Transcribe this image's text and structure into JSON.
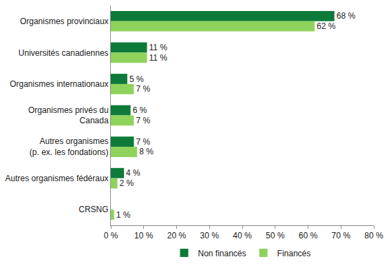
{
  "chart_data": {
    "type": "bar",
    "orientation": "horizontal",
    "categories": [
      "Organismes provinciaux",
      "Universités canadiennes",
      "Organismes internationaux",
      "Organismes privés du\nCanada",
      "Autres organismes\n(p. ex. les fondations)",
      "Autres organismes fédéraux",
      "CRSNG"
    ],
    "series": [
      {
        "name": "Non financés",
        "color": "#0e7a3a",
        "values": [
          68,
          11,
          5,
          6,
          7,
          4,
          null
        ],
        "value_labels": [
          "68 %",
          "11 %",
          "5 %",
          "6 %",
          "7 %",
          "4 %",
          null
        ]
      },
      {
        "name": "Financés",
        "color": "#8fd35c",
        "values": [
          62,
          11,
          7,
          7,
          8,
          2,
          1
        ],
        "value_labels": [
          "62 %",
          "11 %",
          "7 %",
          "7 %",
          "8 %",
          "2 %",
          "1 %"
        ]
      }
    ],
    "xlim": [
      0,
      80
    ],
    "xticks": [
      {
        "value": 0,
        "label": "0 %"
      },
      {
        "value": 10,
        "label": "10 %"
      },
      {
        "value": 20,
        "label": "20 %"
      },
      {
        "value": 30,
        "label": "30 %"
      },
      {
        "value": 40,
        "label": "40 %"
      },
      {
        "value": 50,
        "label": "50 %"
      },
      {
        "value": 60,
        "label": "60 %"
      },
      {
        "value": 70,
        "label": "70 %"
      },
      {
        "value": 80,
        "label": "80 %"
      }
    ],
    "grid": false,
    "data_labels": true,
    "legend": "bottom"
  }
}
